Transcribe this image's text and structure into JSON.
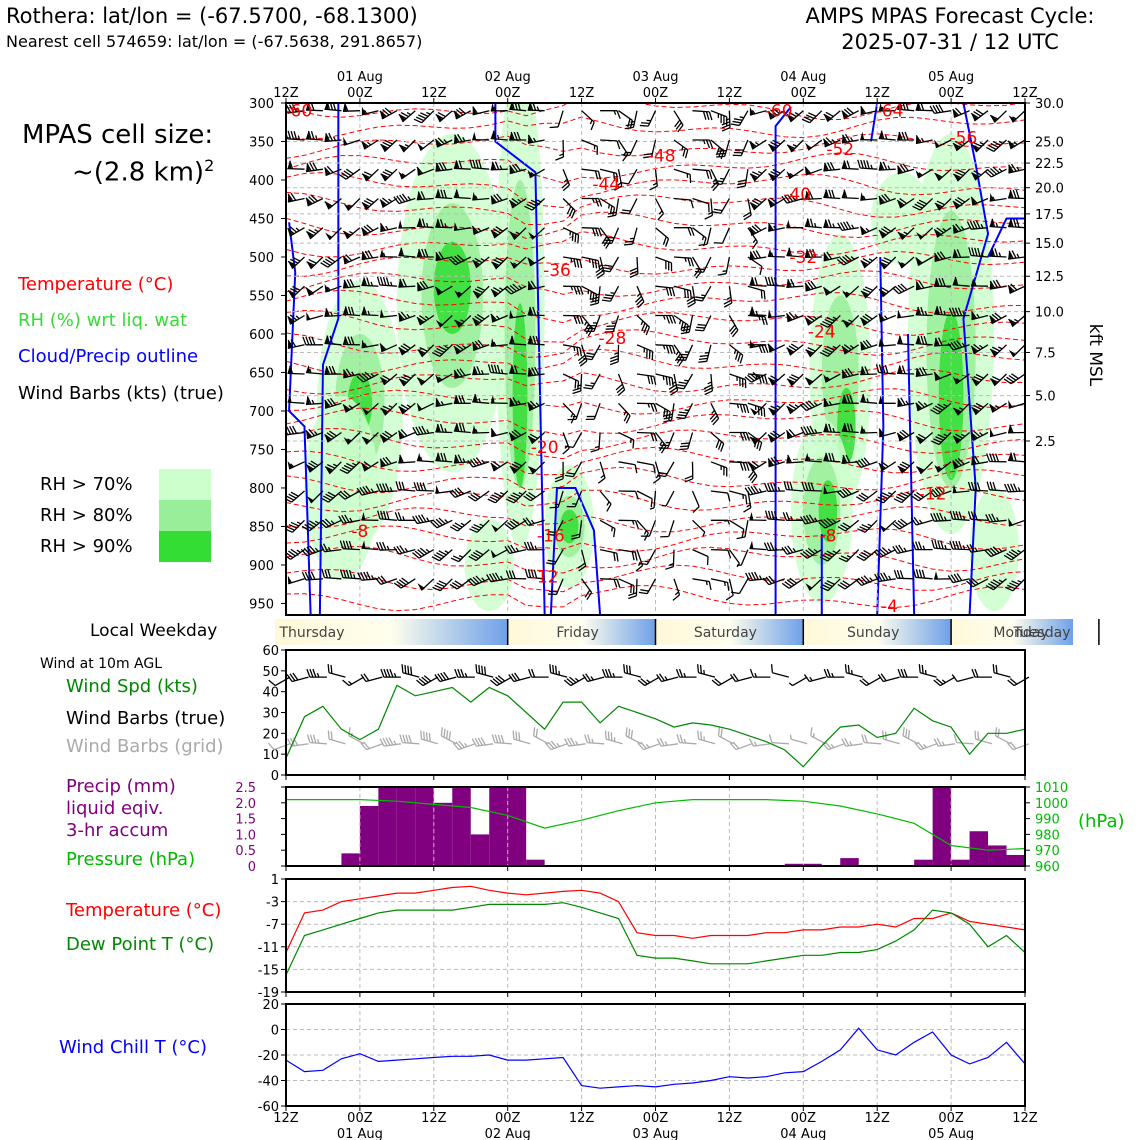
{
  "header": {
    "station_line": "Rothera: lat/lon = (-67.5700, -68.1300)",
    "cell_line": "Nearest cell 574659: lat/lon = (-67.5638, 291.8657)",
    "title_line1": "AMPS MPAS Forecast Cycle:",
    "title_line2": "2025-07-31 / 12 UTC"
  },
  "left_labels": {
    "cell_size_1": "MPAS cell size:",
    "cell_size_2": "~(2.8 km)",
    "cell_size_sup": "2",
    "temperature": "Temperature (°C)",
    "rh": "RH (%) wrt liq. wat",
    "cloud": "Cloud/Precip outline",
    "wind_barbs": "Wind Barbs (kts) (true)",
    "rh70": "RH > 70%",
    "rh80": "RH > 80%",
    "rh90": "RH > 90%",
    "local_weekday": "Local Weekday",
    "wind10m": "Wind at 10m AGL",
    "wind_spd": "Wind Spd (kts)",
    "barbs_true": "Wind Barbs (true)",
    "barbs_grid": "Wind Barbs (grid)",
    "precip1": "Precip (mm)",
    "precip2": "liquid eqiv.",
    "precip3": "3-hr accum",
    "pressure": "Pressure (hPa)",
    "temp2": "Temperature (°C)",
    "dewpoint": "Dew Point T (°C)",
    "windchill": "Wind Chill T (°C)"
  },
  "colors": {
    "temperature": "#ff0000",
    "rh": "#33dd33",
    "cloud": "#0000ff",
    "rh70": "#ccffcc",
    "rh80": "#99ee99",
    "rh90": "#33dd33",
    "wind_green": "#008800",
    "precip": "#800080",
    "pressure": "#00bb00",
    "dewpoint": "#008800",
    "windchill": "#0000ff",
    "grid_barbs": "#aaaaaa"
  },
  "chart_data": [
    {
      "type": "line",
      "panel": "time-height cross section",
      "x_ticks_top": [
        "12Z",
        "00Z",
        "12Z",
        "00Z",
        "12Z",
        "00Z",
        "12Z",
        "00Z",
        "12Z",
        "00Z",
        "12Z"
      ],
      "x_dates_top": [
        "01 Aug",
        "02 Aug",
        "03 Aug",
        "04 Aug",
        "05 Aug"
      ],
      "y_pressure_ticks": [
        300,
        350,
        400,
        450,
        500,
        550,
        600,
        650,
        700,
        750,
        800,
        850,
        900,
        950
      ],
      "ylabel_right": "kft MSL",
      "kft_ticks": [
        "30.0",
        "25.0",
        "22.5",
        "20.0",
        "17.5",
        "15.0",
        "12.5",
        "10.0",
        "7.5",
        "5.0",
        "2.5"
      ],
      "kft_pressure": [
        300,
        350,
        378,
        410,
        444,
        482,
        525,
        571,
        624,
        680,
        739
      ],
      "temperature_labels": [
        {
          "text": "-60",
          "hour": 2,
          "p": 310
        },
        {
          "text": "-60",
          "hour": 80,
          "p": 310
        },
        {
          "text": "-64",
          "hour": 98,
          "p": 310
        },
        {
          "text": "-56",
          "hour": 110,
          "p": 345
        },
        {
          "text": "-52",
          "hour": 90,
          "p": 360
        },
        {
          "text": "-48",
          "hour": 61,
          "p": 368
        },
        {
          "text": "-44",
          "hour": 52,
          "p": 405
        },
        {
          "text": "-40",
          "hour": 83,
          "p": 418
        },
        {
          "text": "-36",
          "hour": 44,
          "p": 517
        },
        {
          "text": "-32",
          "hour": 84,
          "p": 500
        },
        {
          "text": "-28",
          "hour": 53,
          "p": 605
        },
        {
          "text": "-24",
          "hour": 87,
          "p": 597
        },
        {
          "text": "-20",
          "hour": 42,
          "p": 747
        },
        {
          "text": "-16",
          "hour": 43,
          "p": 862
        },
        {
          "text": "-12",
          "hour": 42,
          "p": 915
        },
        {
          "text": "-12",
          "hour": 105,
          "p": 807
        },
        {
          "text": "-8",
          "hour": 12,
          "p": 856
        },
        {
          "text": "-8",
          "hour": 88,
          "p": 862
        },
        {
          "text": "-4",
          "hour": 98,
          "p": 953
        }
      ]
    },
    {
      "type": "bar",
      "panel": "local weekday strip",
      "labels": [
        "Thursday",
        "Friday",
        "Saturday",
        "Sunday",
        "Monday",
        "Tuesday"
      ],
      "boundary_hours": [
        36,
        60,
        84,
        108,
        132
      ]
    },
    {
      "type": "line",
      "panel": "wind at 10m",
      "ylim": [
        0,
        60
      ],
      "y_ticks": [
        0,
        10,
        20,
        30,
        40,
        50,
        60
      ],
      "x_hours": [
        0,
        3,
        6,
        9,
        12,
        15,
        18,
        21,
        24,
        27,
        30,
        33,
        36,
        39,
        42,
        45,
        48,
        51,
        54,
        57,
        60,
        63,
        66,
        69,
        72,
        75,
        78,
        81,
        84,
        87,
        90,
        93,
        96,
        99,
        102,
        105,
        108,
        111,
        114,
        117,
        120
      ],
      "series": [
        {
          "name": "Wind Spd (kts)",
          "values": [
            8,
            28,
            33,
            22,
            17,
            22,
            43,
            38,
            40,
            42,
            35,
            42,
            38,
            30,
            22,
            35,
            35,
            25,
            33,
            30,
            27,
            23,
            25,
            24,
            22,
            19,
            16,
            12,
            4,
            14,
            23,
            24,
            18,
            20,
            32,
            26,
            23,
            10,
            20,
            20,
            22
          ]
        }
      ]
    },
    {
      "type": "bar",
      "panel": "precip and pressure",
      "y_ticks_left": [
        "0",
        "0.5",
        "1.0",
        "1.5",
        "2.0",
        "2.5"
      ],
      "ylim_left": [
        0,
        2.5
      ],
      "y_ticks_right": [
        960,
        970,
        980,
        990,
        1000,
        1010
      ],
      "ylim_right": [
        960,
        1010
      ],
      "ylabel_right": "(hPa)",
      "bar_start_hours": [
        9,
        12,
        15,
        18,
        21,
        24,
        27,
        30,
        33,
        36,
        39,
        42,
        45,
        48,
        51,
        54,
        57,
        60,
        63,
        66,
        69,
        72,
        75,
        78,
        81,
        84,
        87,
        90,
        93,
        96,
        99,
        102,
        105,
        108,
        111,
        114,
        117
      ],
      "precip": [
        0.4,
        1.9,
        2.5,
        2.5,
        2.5,
        2.0,
        2.5,
        1.0,
        2.5,
        2.5,
        0.2,
        0,
        0,
        0,
        0,
        0,
        0,
        0,
        0,
        0,
        0,
        0,
        0,
        0,
        0.07,
        0.07,
        0,
        0.25,
        0,
        0,
        0,
        0.2,
        2.5,
        0.2,
        1.1,
        0.65,
        0.35
      ],
      "pressure_hours": [
        0,
        6,
        12,
        18,
        24,
        30,
        36,
        42,
        48,
        54,
        60,
        66,
        72,
        78,
        84,
        90,
        96,
        102,
        108,
        114,
        120
      ],
      "pressure": [
        1002,
        1002,
        1002,
        1001,
        999,
        997,
        992,
        984,
        989,
        995,
        1000,
        1002,
        1002,
        1002,
        1001,
        998,
        993,
        987,
        973,
        970,
        971
      ]
    },
    {
      "type": "line",
      "panel": "temperature and dew point",
      "ylim": [
        -19,
        1
      ],
      "y_ticks": [
        1,
        -3,
        -7,
        -11,
        -15,
        -19
      ],
      "x_hours": [
        0,
        3,
        6,
        9,
        12,
        15,
        18,
        21,
        24,
        27,
        30,
        33,
        36,
        39,
        42,
        45,
        48,
        51,
        54,
        57,
        60,
        63,
        66,
        69,
        72,
        75,
        78,
        81,
        84,
        87,
        90,
        93,
        96,
        99,
        102,
        105,
        108,
        111,
        114,
        117,
        120
      ],
      "series": [
        {
          "name": "Temperature (°C)",
          "values": [
            -12,
            -5,
            -4.5,
            -3,
            -2.5,
            -2,
            -1.5,
            -1.5,
            -1,
            -0.5,
            -0.3,
            -1,
            -1.5,
            -1.8,
            -1.5,
            -1.2,
            -1,
            -1.5,
            -3,
            -8.5,
            -9,
            -9,
            -9.5,
            -9,
            -9,
            -9,
            -8.5,
            -8.5,
            -8,
            -8,
            -7.5,
            -7.5,
            -7,
            -7.5,
            -6,
            -6,
            -5,
            -6.5,
            -7,
            -7.5,
            -8
          ]
        },
        {
          "name": "Dew Point T (°C)",
          "values": [
            -16,
            -9,
            -8,
            -7,
            -6,
            -5,
            -4.5,
            -4.5,
            -4.5,
            -4.5,
            -4,
            -3.5,
            -3.5,
            -3.5,
            -3.5,
            -3.2,
            -4,
            -5,
            -6,
            -12.5,
            -13,
            -13,
            -13.5,
            -14,
            -14,
            -14,
            -13.5,
            -13,
            -12.5,
            -12.5,
            -12,
            -12,
            -11.5,
            -10,
            -8,
            -4.5,
            -5,
            -7,
            -11,
            -9,
            -12
          ]
        }
      ]
    },
    {
      "type": "line",
      "panel": "wind chill",
      "ylim": [
        -60,
        20
      ],
      "y_ticks": [
        20,
        0,
        -20,
        -40,
        -60
      ],
      "x_hours": [
        0,
        3,
        6,
        9,
        12,
        15,
        18,
        21,
        24,
        27,
        30,
        33,
        36,
        39,
        42,
        45,
        48,
        51,
        54,
        57,
        60,
        63,
        66,
        69,
        72,
        75,
        78,
        81,
        84,
        87,
        90,
        93,
        96,
        99,
        102,
        105,
        108,
        111,
        114,
        117,
        120
      ],
      "series": [
        {
          "name": "Wind Chill T (°C)",
          "values": [
            -24,
            -33,
            -32,
            -23,
            -19,
            -25,
            -24,
            -23,
            -22,
            -21,
            -21,
            -20,
            -24,
            -24,
            -23,
            -22,
            -44,
            -46,
            -45,
            -44,
            -45,
            -43,
            -42,
            -40,
            -37,
            -38,
            -37,
            -34,
            -33,
            -25,
            -16,
            1,
            -16,
            -20,
            -10,
            -2,
            -20,
            -27,
            -22,
            -10,
            -27
          ]
        }
      ]
    },
    {
      "type": "table",
      "panel": "bottom time axis",
      "x_ticks_bottom": [
        "12Z",
        "00Z",
        "12Z",
        "00Z",
        "12Z",
        "00Z",
        "12Z",
        "00Z",
        "12Z",
        "00Z",
        "12Z"
      ],
      "x_dates_bottom": [
        "01 Aug",
        "02 Aug",
        "03 Aug",
        "04 Aug",
        "05 Aug"
      ]
    }
  ]
}
